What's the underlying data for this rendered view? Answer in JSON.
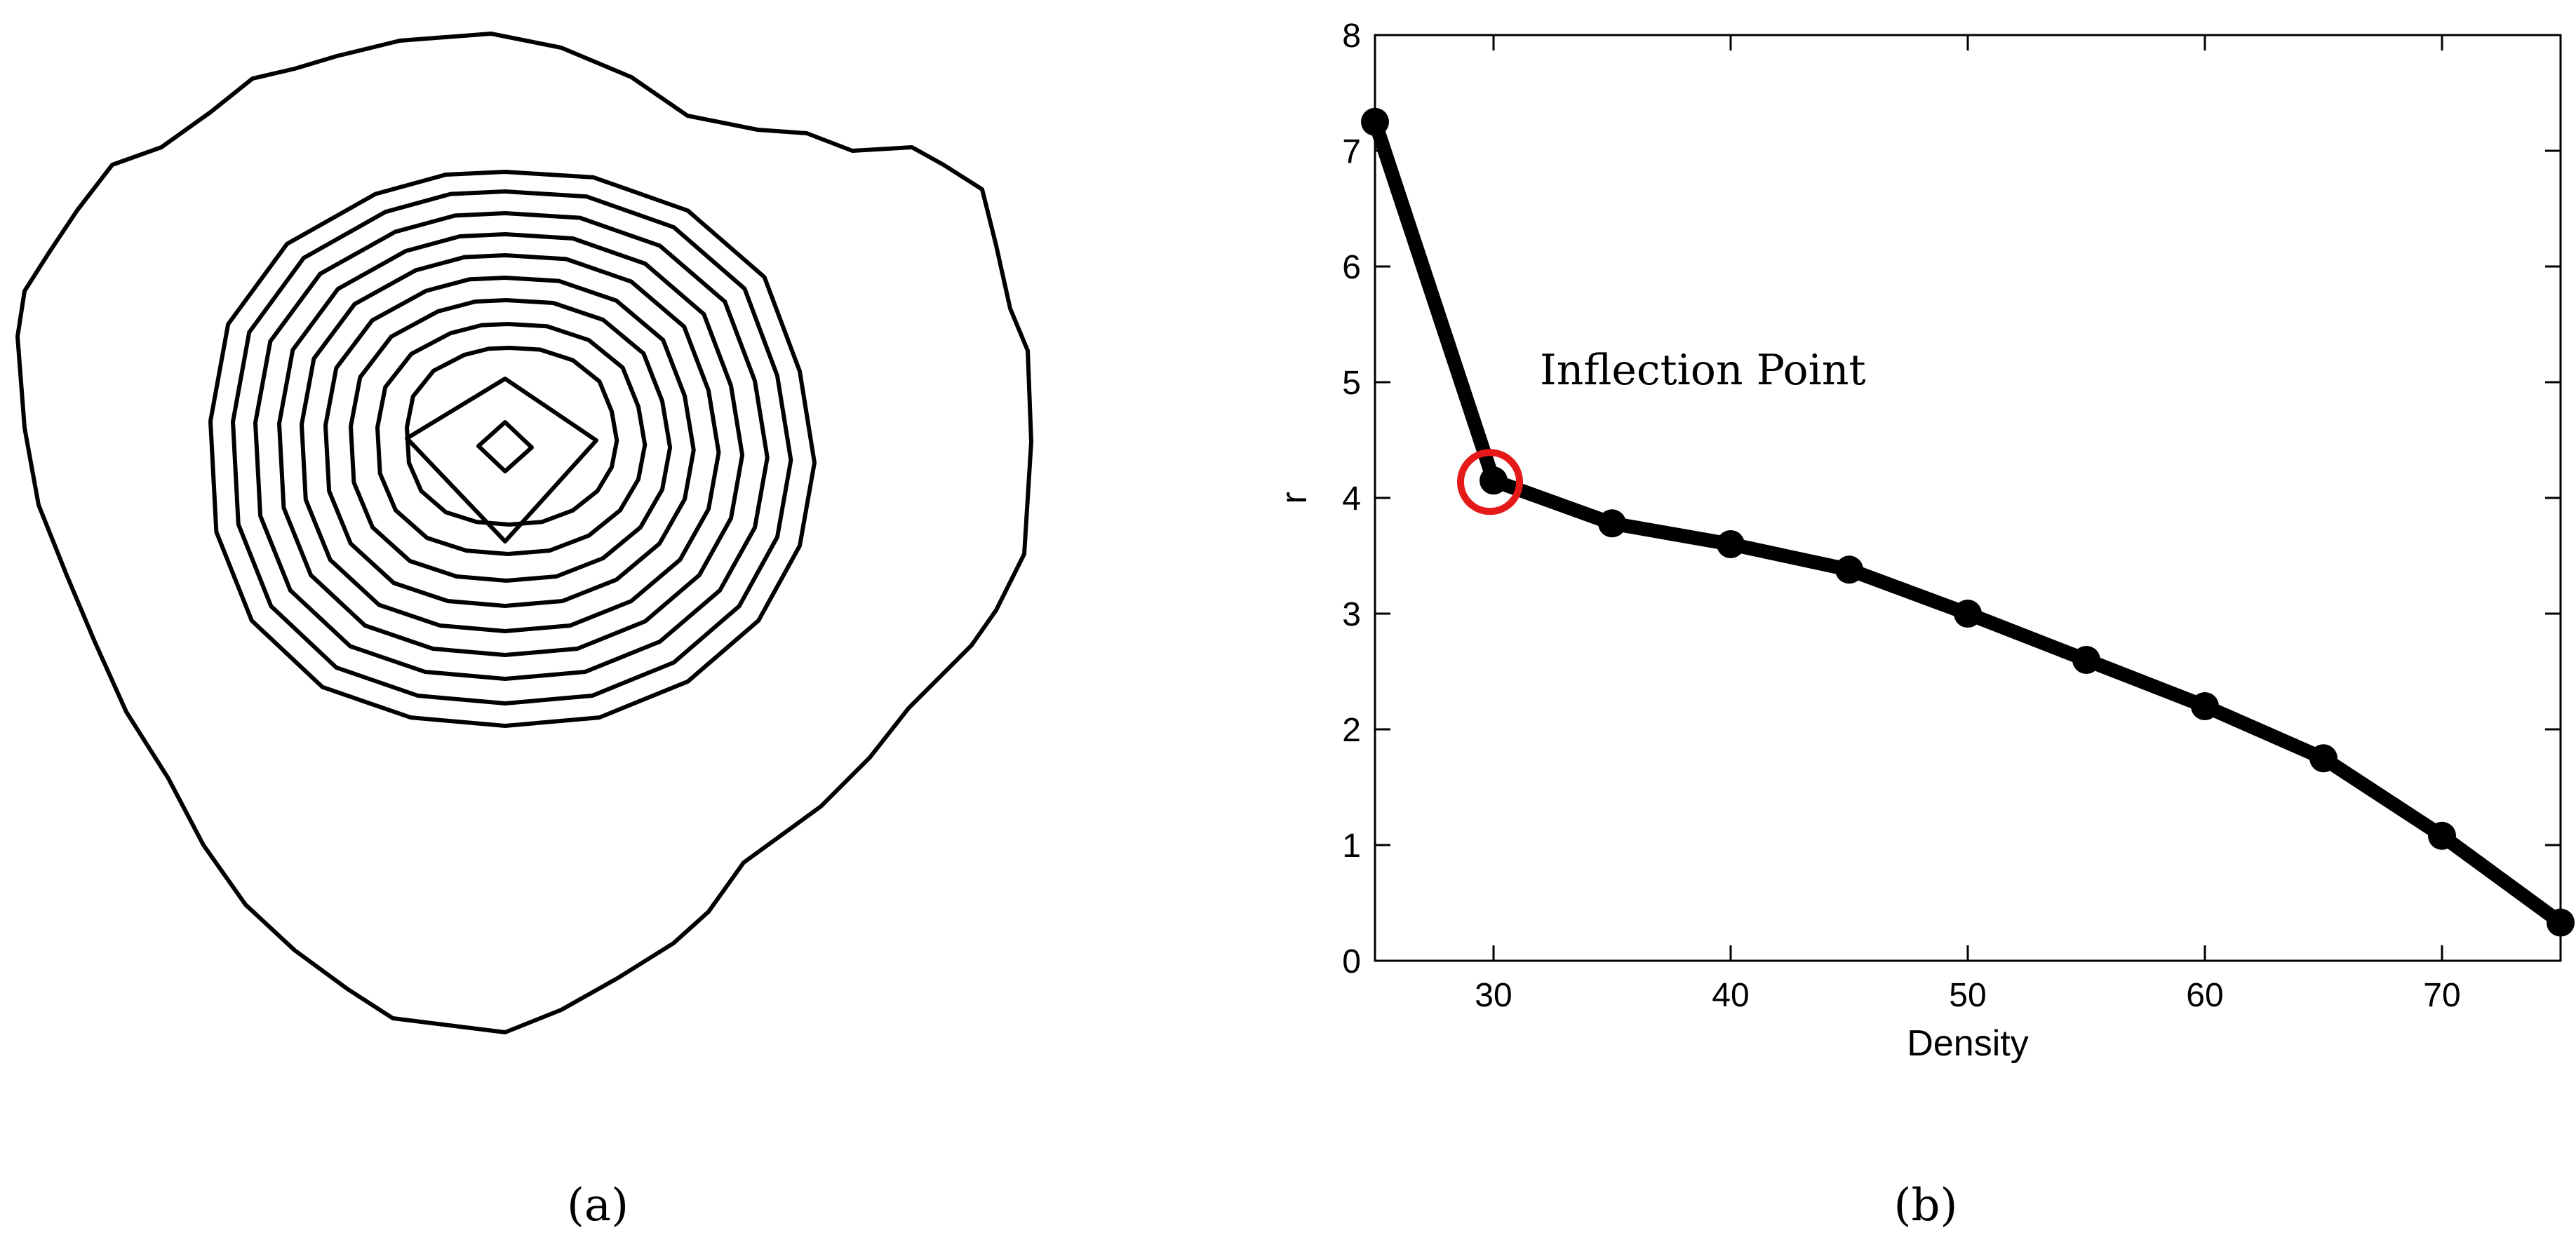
{
  "panels": {
    "a": {
      "caption": "(a)"
    },
    "b": {
      "caption": "(b)"
    }
  },
  "chart_data": {
    "type": "line",
    "title": "",
    "xlabel": "Density",
    "ylabel": "r",
    "xlim": [
      25,
      75
    ],
    "ylim": [
      0,
      8
    ],
    "xticks": [
      30,
      40,
      50,
      60,
      70
    ],
    "yticks": [
      0,
      1,
      2,
      3,
      4,
      5,
      6,
      7,
      8
    ],
    "grid": false,
    "series": [
      {
        "x": [
          25,
          30,
          35,
          40,
          45,
          50,
          55,
          60,
          65,
          70,
          75
        ],
        "y": [
          7.25,
          4.15,
          3.78,
          3.6,
          3.38,
          3.0,
          2.6,
          2.2,
          1.75,
          1.08,
          0.33
        ]
      }
    ],
    "annotations": [
      {
        "text": "Inflection Point",
        "x": 30,
        "y": 4.15
      }
    ],
    "colors": {
      "line": "#000000",
      "highlight": "#e61919"
    }
  }
}
